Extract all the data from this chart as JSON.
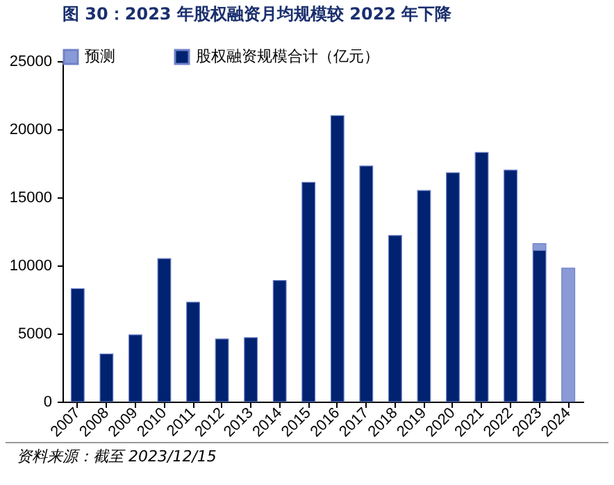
{
  "chart_data": {
    "type": "bar",
    "title": "图 30：2023 年股权融资月均规模较 2022 年下降",
    "categories": [
      "2007",
      "2008",
      "2009",
      "2010",
      "2011",
      "2012",
      "2013",
      "2014",
      "2015",
      "2016",
      "2017",
      "2018",
      "2019",
      "2020",
      "2021",
      "2022",
      "2023",
      "2024"
    ],
    "series": [
      {
        "name": "股权融资规模合计（亿元）",
        "color": "#002270",
        "values": [
          8300,
          3500,
          4900,
          10500,
          7300,
          4600,
          4700,
          8900,
          16100,
          21000,
          17300,
          12200,
          15500,
          16800,
          18300,
          17000,
          11100,
          null
        ]
      },
      {
        "name": "预测",
        "color": "#8a9ad6",
        "values": [
          null,
          null,
          null,
          null,
          null,
          null,
          null,
          null,
          null,
          null,
          null,
          null,
          null,
          null,
          null,
          null,
          500,
          9800
        ]
      }
    ],
    "stacked": true,
    "ylim": [
      0,
      25000
    ],
    "yticks": [
      0,
      5000,
      10000,
      15000,
      20000,
      25000
    ],
    "grid": false,
    "legend": "top",
    "annotations": [
      "资料来源：截至 2023/12/15"
    ]
  }
}
